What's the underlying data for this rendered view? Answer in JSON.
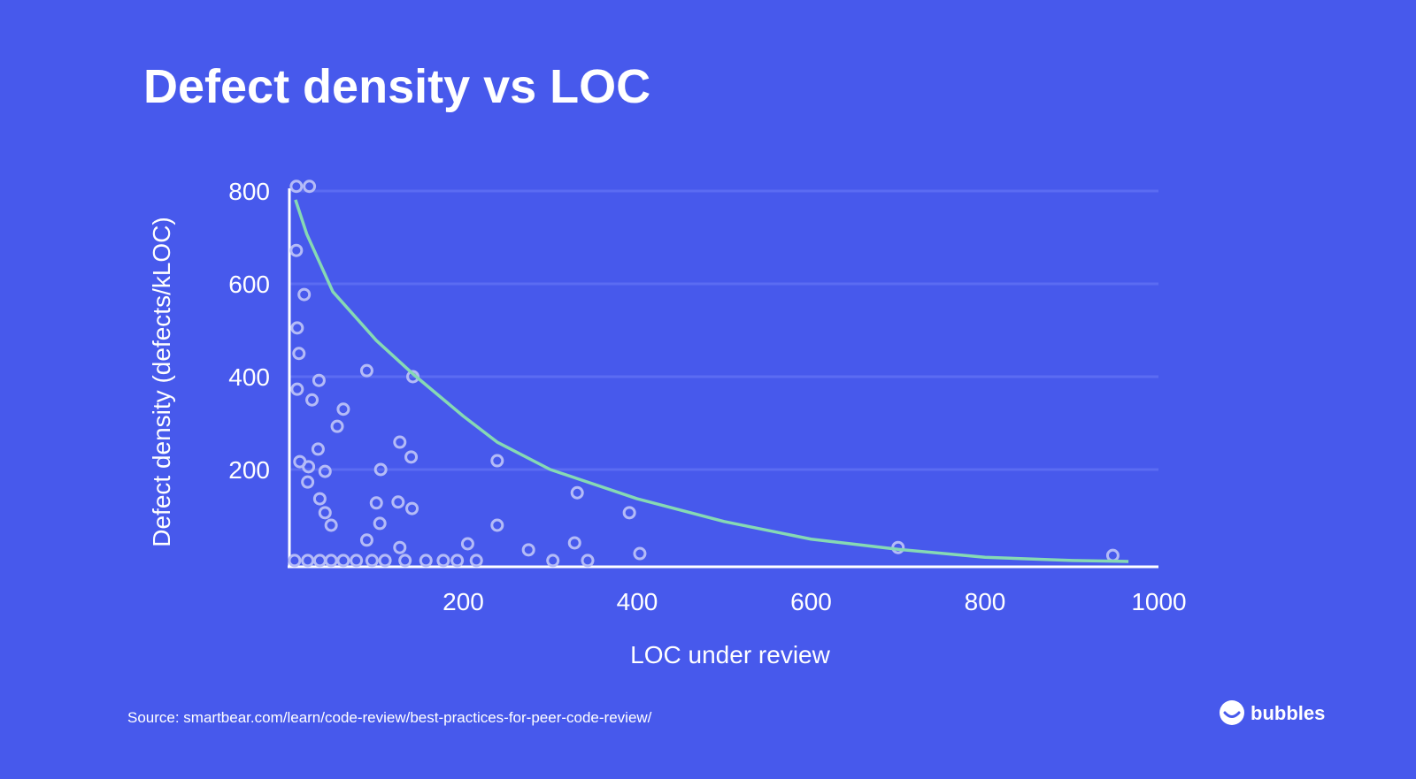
{
  "chart_data": {
    "type": "scatter",
    "title": "Defect density vs LOC",
    "x_label": "LOC under review",
    "y_label": "Defect density (defects/kLOC)",
    "xlim": [
      0,
      1000
    ],
    "ylim": [
      0,
      810
    ],
    "xticks": [
      200,
      400,
      600,
      800,
      1000
    ],
    "yticks": [
      200,
      400,
      600,
      800
    ],
    "grid": true,
    "series": [
      {
        "type": "scatter",
        "color": "#b4bbf7",
        "x": [
          8,
          23,
          8,
          17,
          9,
          11,
          9,
          34,
          26,
          89,
          142,
          62,
          55,
          127,
          140,
          33,
          12,
          22,
          41,
          105,
          21,
          239,
          35,
          41,
          48,
          100,
          125,
          141,
          331,
          391,
          104,
          239,
          89,
          127,
          205,
          328,
          275,
          403,
          700,
          947,
          6,
          21,
          35,
          48,
          62,
          77,
          95,
          110,
          133,
          157,
          177,
          193,
          215,
          303,
          343
        ],
        "values": [
          810,
          810,
          672,
          577,
          505,
          450,
          373,
          392,
          350,
          413,
          400,
          330,
          293,
          259,
          227,
          244,
          217,
          206,
          196,
          200,
          173,
          219,
          137,
          107,
          80,
          128,
          130,
          116,
          150,
          107,
          84,
          80,
          48,
          32,
          40,
          42,
          27,
          19,
          32,
          15,
          4,
          4,
          4,
          4,
          4,
          4,
          4,
          4,
          4,
          4,
          4,
          4,
          4,
          4,
          4
        ]
      },
      {
        "type": "line",
        "color": "#86d9b4",
        "x": [
          7,
          20,
          50,
          100,
          142,
          200,
          239,
          300,
          400,
          500,
          600,
          700,
          800,
          900,
          965
        ],
        "values": [
          781,
          707,
          583,
          478,
          406,
          315,
          259,
          200,
          137,
          88,
          50,
          28,
          11,
          4,
          2
        ]
      }
    ],
    "source": "Source: smartbear.com/learn/code-review/best-practices-for-peer-code-review/",
    "brand": "bubbles"
  }
}
